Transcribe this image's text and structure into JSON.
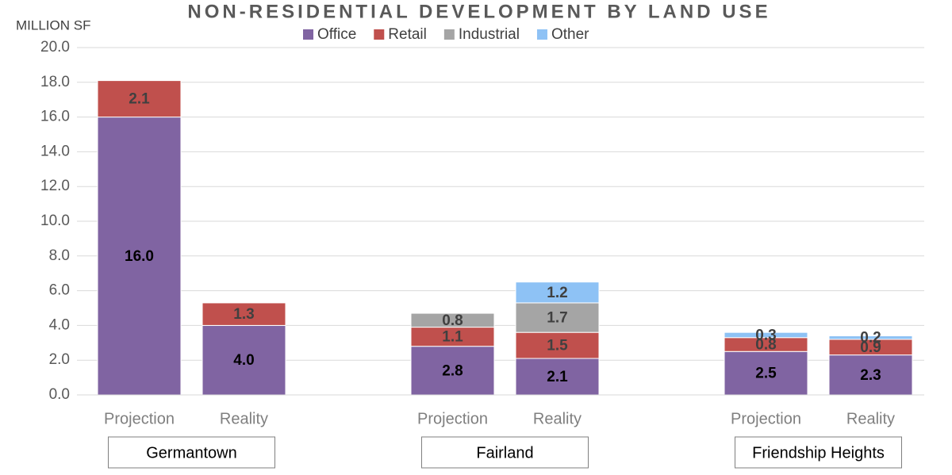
{
  "chart_data": {
    "type": "stacked-bar",
    "title": "NON-RESIDENTIAL DEVELOPMENT BY LAND USE",
    "y_label": "MILLION SF",
    "categories": [
      "Projection",
      "Reality",
      "Projection",
      "Reality",
      "Projection",
      "Reality"
    ],
    "groups": [
      "Germantown",
      "Fairland",
      "Friendship Heights"
    ],
    "series": [
      {
        "name": "Office",
        "color": "#8064a2",
        "values": [
          16,
          4,
          2.8,
          2.1,
          2.5,
          2.3
        ],
        "value_labels": [
          "16.0",
          "4.0",
          "2.8",
          "2.1",
          "2.5",
          "2.3"
        ]
      },
      {
        "name": "Retail",
        "color": "#c0504d",
        "values": [
          2.1,
          1.3,
          1.1,
          1.5,
          0.8,
          0.9
        ]
      },
      {
        "name": "Industrial",
        "color": "#a5a5a5",
        "values": [
          null,
          null,
          0.8,
          1.7,
          null,
          null
        ]
      },
      {
        "name": "Other",
        "color": "#8ec2f5",
        "values": [
          null,
          null,
          null,
          1.2,
          0.3,
          0.2
        ]
      }
    ],
    "ylim": [
      0,
      20
    ],
    "yticks": [
      {
        "value": 0,
        "label": "0.0"
      },
      {
        "value": 2,
        "label": "2.0"
      },
      {
        "value": 4,
        "label": "4.0"
      },
      {
        "value": 6,
        "label": "6.0"
      },
      {
        "value": 8,
        "label": "8.0"
      },
      {
        "value": 10,
        "label": "10.0"
      },
      {
        "value": 12,
        "label": "12.0"
      },
      {
        "value": 14,
        "label": "14.0"
      },
      {
        "value": 16,
        "label": "16.0"
      },
      {
        "value": 18,
        "label": "18.0"
      },
      {
        "value": 20,
        "label": "20.0"
      }
    ],
    "grid": true,
    "legend": "top"
  }
}
